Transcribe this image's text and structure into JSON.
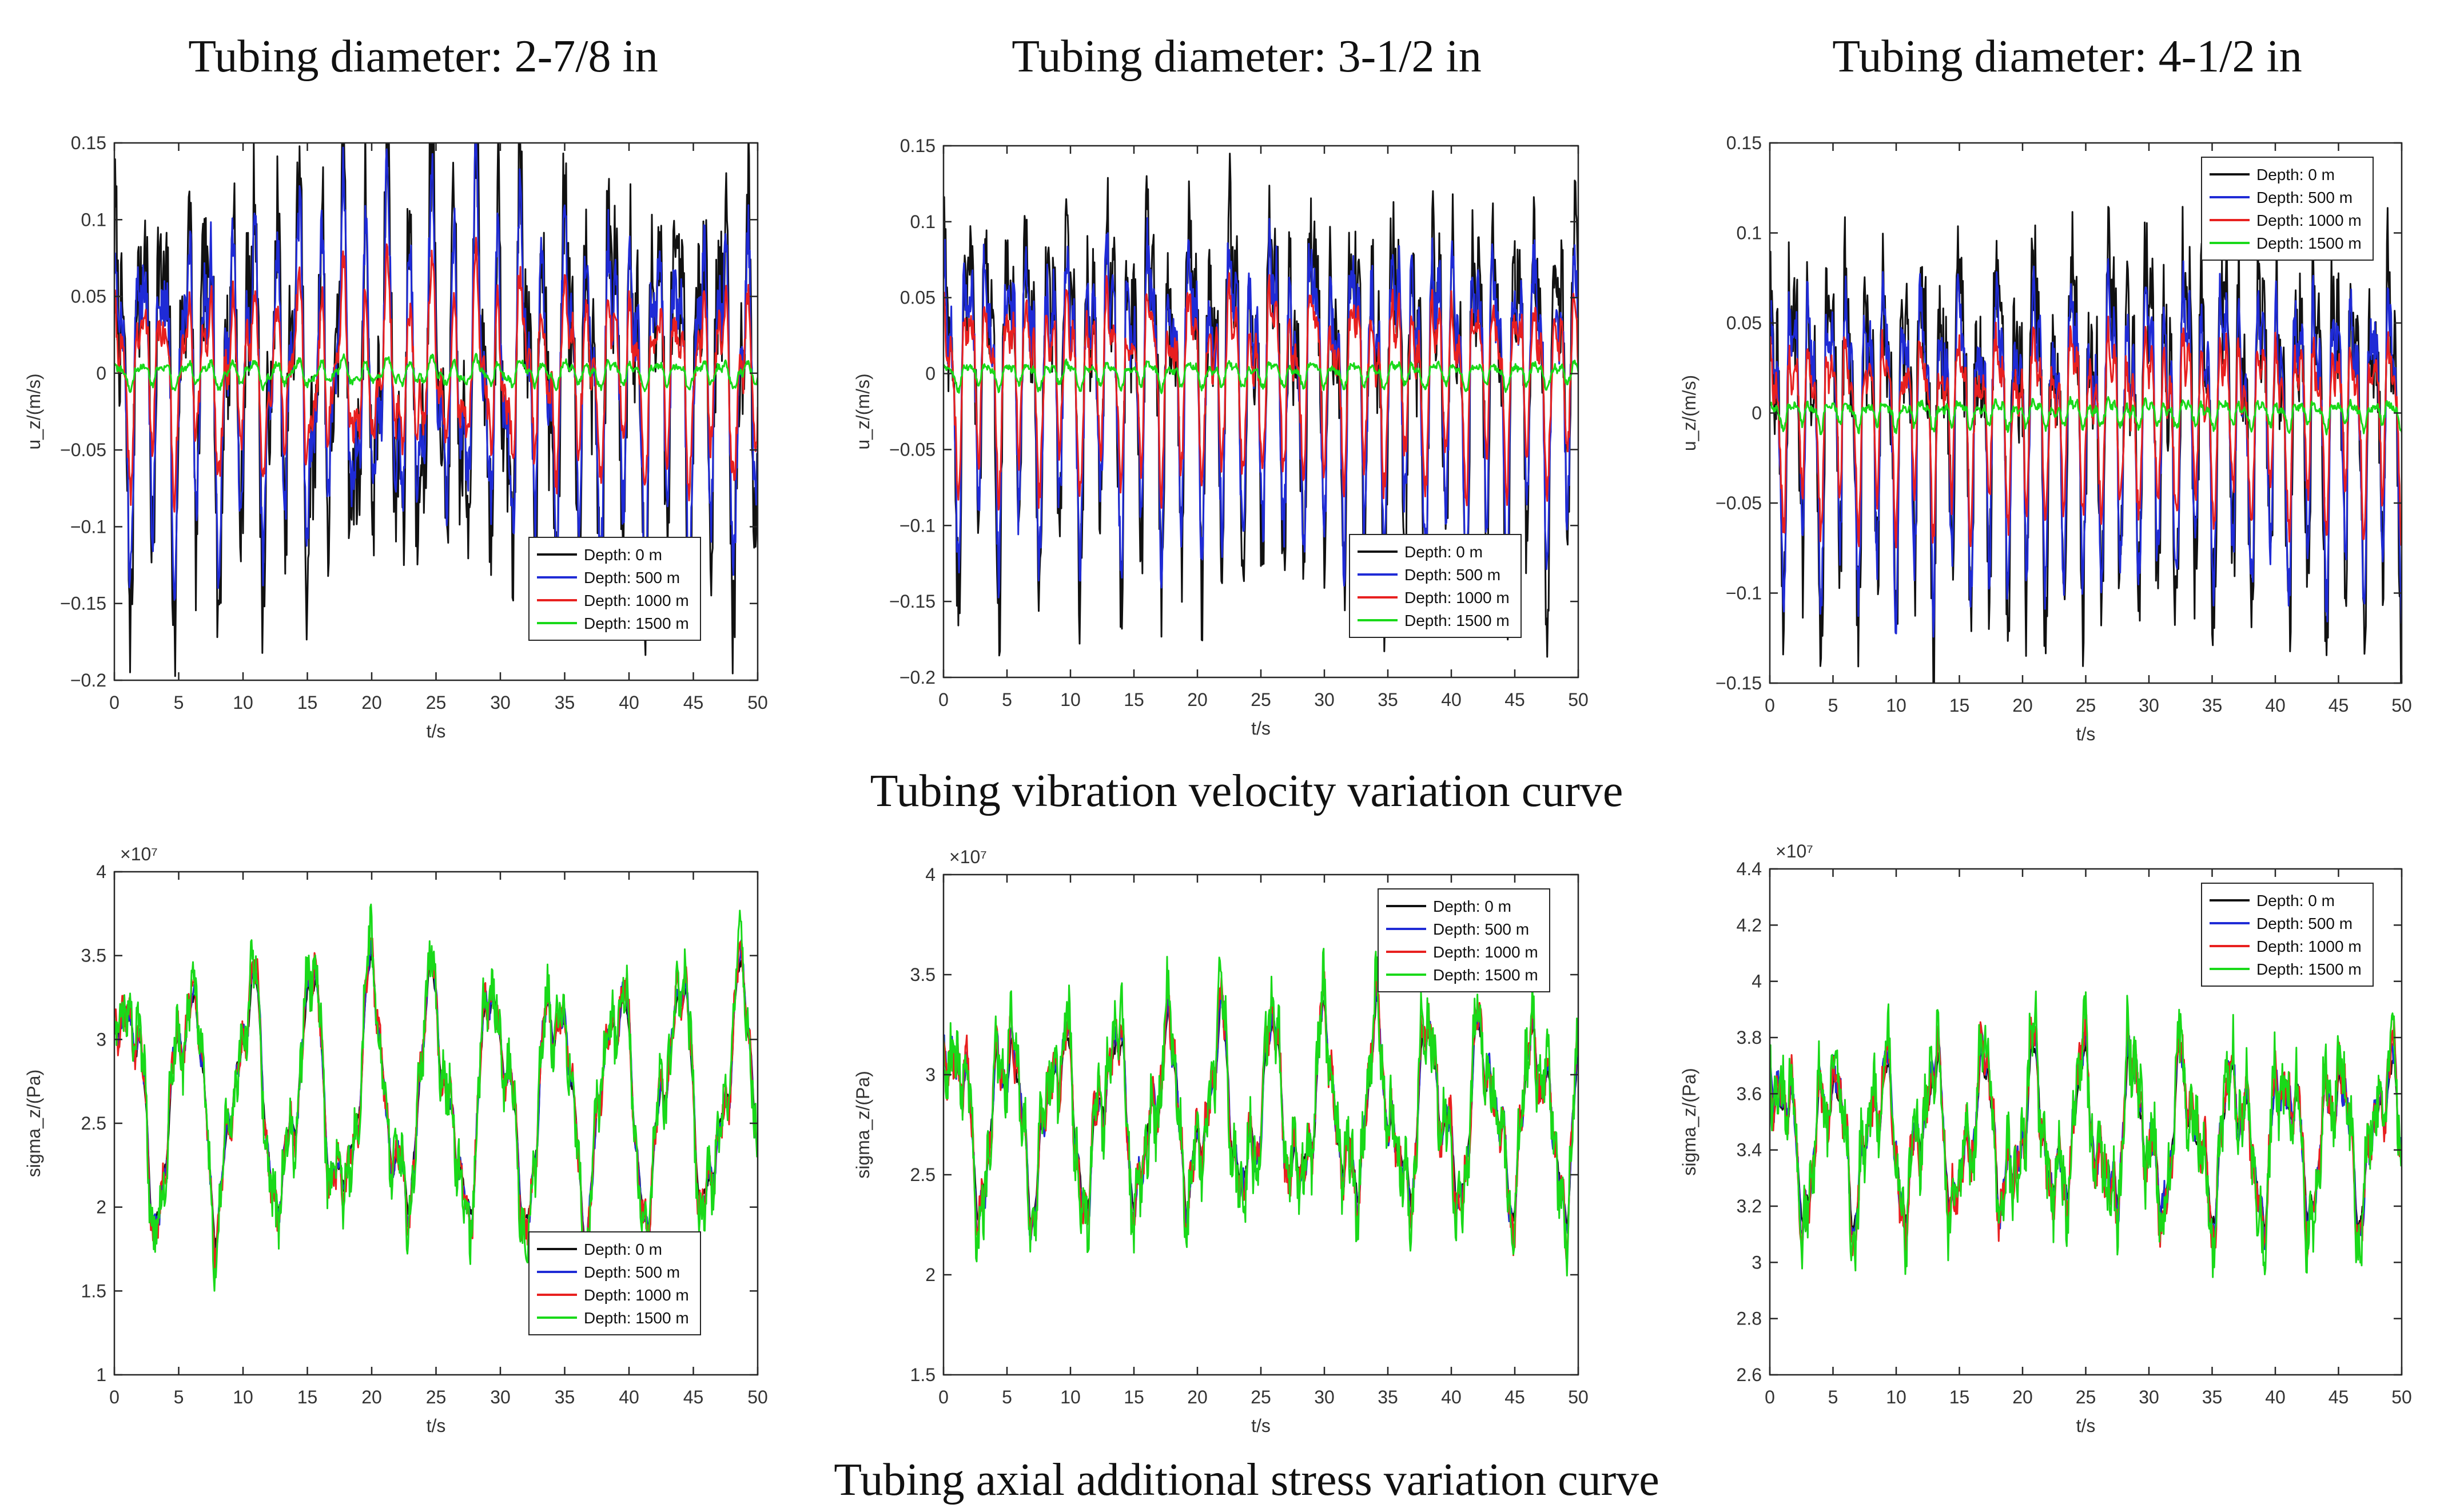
{
  "panel_titles": [
    "Tubing diameter: 2-7/8 in",
    "Tubing diameter: 3-1/2 in",
    "Tubing diameter: 4-1/2 in"
  ],
  "row_captions": [
    "Tubing vibration velocity variation curve",
    "Tubing axial additional stress variation curve"
  ],
  "series_colors": [
    "#111111",
    "#1f2bd6",
    "#e8201f",
    "#19d919"
  ],
  "chart_data": [
    {
      "type": "line",
      "id": "vel-278",
      "title": "Tubing diameter: 2-7/8 in",
      "xlabel": "t/s",
      "ylabel": "u_z/(m/s)",
      "xlim": [
        0,
        50
      ],
      "ylim": [
        -0.2,
        0.15
      ],
      "xticks": [
        0,
        5,
        10,
        15,
        20,
        25,
        30,
        35,
        40,
        45,
        50
      ],
      "xtick_labels": [
        "0",
        "5",
        "10",
        "15",
        "20",
        "25",
        "30",
        "35",
        "40",
        "45",
        "50"
      ],
      "yticks": [
        -0.2,
        -0.15,
        -0.1,
        -0.05,
        0,
        0.05,
        0.1,
        0.15
      ],
      "ytick_labels": [
        "−0.2",
        "−0.15",
        "−0.1",
        "−0.05",
        "0",
        "0.05",
        "0.1",
        "0.15"
      ],
      "exponent_label": "",
      "legend": "bottom-right",
      "series": [
        {
          "name": "Depth: 0 m",
          "amplitudes": [
            0.09,
            0.05,
            0.028,
            0.012
          ],
          "spike": 0.045
        },
        {
          "name": "Depth: 500 m",
          "amplitudes": [
            0.075,
            0.04,
            0.022,
            0.008
          ],
          "spike": 0.02
        },
        {
          "name": "Depth: 1000 m",
          "amplitudes": [
            0.04,
            0.022,
            0.015,
            0.007
          ],
          "spike": 0.01
        },
        {
          "name": "Depth: 1500 m",
          "amplitudes": [
            0.006,
            0.003,
            0.002,
            0.001
          ],
          "spike": 0.002
        }
      ],
      "signal": {
        "kind": "velocity",
        "base": 0,
        "freqs": [
          1.15,
          2.35,
          0.55,
          3.7
        ]
      }
    },
    {
      "type": "line",
      "id": "vel-312",
      "title": "Tubing diameter: 3-1/2 in",
      "xlabel": "t/s",
      "ylabel": "u_z/(m/s)",
      "xlim": [
        0,
        50
      ],
      "ylim": [
        -0.2,
        0.15
      ],
      "xticks": [
        0,
        5,
        10,
        15,
        20,
        25,
        30,
        35,
        40,
        45,
        50
      ],
      "xtick_labels": [
        "0",
        "5",
        "10",
        "15",
        "20",
        "25",
        "30",
        "35",
        "40",
        "45",
        "50"
      ],
      "yticks": [
        -0.2,
        -0.15,
        -0.1,
        -0.05,
        0,
        0.05,
        0.1,
        0.15
      ],
      "ytick_labels": [
        "−0.2",
        "−0.15",
        "−0.1",
        "−0.05",
        "0",
        "0.05",
        "0.1",
        "0.15"
      ],
      "exponent_label": "",
      "legend": "bottom-right",
      "series": [
        {
          "name": "Depth: 0 m",
          "amplitudes": [
            0.085,
            0.045,
            0.025,
            0.012
          ],
          "spike": 0.035
        },
        {
          "name": "Depth: 500 m",
          "amplitudes": [
            0.07,
            0.038,
            0.02,
            0.008
          ],
          "spike": 0.02
        },
        {
          "name": "Depth: 1000 m",
          "amplitudes": [
            0.042,
            0.024,
            0.014,
            0.006
          ],
          "spike": 0.01
        },
        {
          "name": "Depth: 1500 m",
          "amplitudes": [
            0.006,
            0.003,
            0.002,
            0.001
          ],
          "spike": 0.002
        }
      ],
      "signal": {
        "kind": "velocity",
        "base": 0,
        "freqs": [
          1.25,
          2.5,
          0.6,
          3.9
        ]
      }
    },
    {
      "type": "line",
      "id": "vel-412",
      "title": "Tubing diameter: 4-1/2 in",
      "xlabel": "t/s",
      "ylabel": "u_z/(m/s)",
      "xlim": [
        0,
        50
      ],
      "ylim": [
        -0.15,
        0.15
      ],
      "xticks": [
        0,
        5,
        10,
        15,
        20,
        25,
        30,
        35,
        40,
        45,
        50
      ],
      "xtick_labels": [
        "0",
        "5",
        "10",
        "15",
        "20",
        "25",
        "30",
        "35",
        "40",
        "45",
        "50"
      ],
      "yticks": [
        -0.15,
        -0.1,
        -0.05,
        0,
        0.05,
        0.1,
        0.15
      ],
      "ytick_labels": [
        "−0.15",
        "−0.1",
        "−0.05",
        "0",
        "0.05",
        "0.1",
        "0.15"
      ],
      "exponent_label": "",
      "legend": "top-right",
      "series": [
        {
          "name": "Depth: 0 m",
          "amplitudes": [
            0.07,
            0.035,
            0.02,
            0.01
          ],
          "spike": 0.035
        },
        {
          "name": "Depth: 500 m",
          "amplitudes": [
            0.06,
            0.03,
            0.016,
            0.007
          ],
          "spike": 0.015
        },
        {
          "name": "Depth: 1000 m",
          "amplitudes": [
            0.035,
            0.02,
            0.012,
            0.005
          ],
          "spike": 0.008
        },
        {
          "name": "Depth: 1500 m",
          "amplitudes": [
            0.005,
            0.003,
            0.002,
            0.001
          ],
          "spike": 0.002
        }
      ],
      "signal": {
        "kind": "velocity",
        "base": 0,
        "freqs": [
          1.35,
          2.7,
          0.65,
          4.1
        ]
      }
    },
    {
      "type": "line",
      "id": "stress-278",
      "title": "Tubing diameter: 2-7/8 in",
      "xlabel": "t/s",
      "ylabel": "sigma_z/(Pa)",
      "xlim": [
        0,
        50
      ],
      "ylim": [
        10000000,
        40000000
      ],
      "xticks": [
        0,
        5,
        10,
        15,
        20,
        25,
        30,
        35,
        40,
        45,
        50
      ],
      "xtick_labels": [
        "0",
        "5",
        "10",
        "15",
        "20",
        "25",
        "30",
        "35",
        "40",
        "45",
        "50"
      ],
      "yticks": [
        10000000,
        15000000,
        20000000,
        25000000,
        30000000,
        35000000,
        40000000
      ],
      "ytick_labels": [
        "1",
        "1.5",
        "2",
        "2.5",
        "3",
        "3.5",
        "4"
      ],
      "exponent_label": "×10⁷",
      "legend": "bottom-right",
      "series": [
        {
          "name": "Depth: 0 m",
          "amplitudes": [
            6000000,
            1800000,
            900000,
            400000
          ],
          "spike": 300000
        },
        {
          "name": "Depth: 500 m",
          "amplitudes": [
            6200000,
            2000000,
            1000000,
            600000
          ],
          "spike": 600000
        },
        {
          "name": "Depth: 1000 m",
          "amplitudes": [
            6300000,
            2100000,
            1100000,
            800000
          ],
          "spike": 900000
        },
        {
          "name": "Depth: 1500 m",
          "amplitudes": [
            6500000,
            2200000,
            1200000,
            1000000
          ],
          "spike": 1500000
        }
      ],
      "signal": {
        "kind": "stress",
        "base": 26500000,
        "freqs": [
          0.42,
          0.9,
          1.6,
          3.2
        ]
      }
    },
    {
      "type": "line",
      "id": "stress-312",
      "title": "Tubing diameter: 3-1/2 in",
      "xlabel": "t/s",
      "ylabel": "sigma_z/(Pa)",
      "xlim": [
        0,
        50
      ],
      "ylim": [
        15000000,
        40000000
      ],
      "xticks": [
        0,
        5,
        10,
        15,
        20,
        25,
        30,
        35,
        40,
        45,
        50
      ],
      "xtick_labels": [
        "0",
        "5",
        "10",
        "15",
        "20",
        "25",
        "30",
        "35",
        "40",
        "45",
        "50"
      ],
      "yticks": [
        15000000,
        20000000,
        25000000,
        30000000,
        35000000,
        40000000
      ],
      "ytick_labels": [
        "1.5",
        "2",
        "2.5",
        "3",
        "3.5",
        "4"
      ],
      "exponent_label": "×10⁷",
      "legend": "top-right",
      "series": [
        {
          "name": "Depth: 0 m",
          "amplitudes": [
            3500000,
            1500000,
            800000,
            400000
          ],
          "spike": 300000
        },
        {
          "name": "Depth: 500 m",
          "amplitudes": [
            3700000,
            1600000,
            900000,
            600000
          ],
          "spike": 600000
        },
        {
          "name": "Depth: 1000 m",
          "amplitudes": [
            3800000,
            1700000,
            1000000,
            800000
          ],
          "spike": 900000
        },
        {
          "name": "Depth: 1500 m",
          "amplitudes": [
            4000000,
            1800000,
            1100000,
            1000000
          ],
          "spike": 1400000
        }
      ],
      "signal": {
        "kind": "stress",
        "base": 28000000,
        "freqs": [
          0.48,
          1.0,
          1.8,
          3.4
        ]
      }
    },
    {
      "type": "line",
      "id": "stress-412",
      "title": "Tubing diameter: 4-1/2 in",
      "xlabel": "t/s",
      "ylabel": "sigma_z/(Pa)",
      "xlim": [
        0,
        50
      ],
      "ylim": [
        26000000,
        44000000
      ],
      "xticks": [
        0,
        5,
        10,
        15,
        20,
        25,
        30,
        35,
        40,
        45,
        50
      ],
      "xtick_labels": [
        "0",
        "5",
        "10",
        "15",
        "20",
        "25",
        "30",
        "35",
        "40",
        "45",
        "50"
      ],
      "yticks": [
        26000000,
        28000000,
        30000000,
        32000000,
        34000000,
        36000000,
        38000000,
        40000000,
        42000000,
        44000000
      ],
      "ytick_labels": [
        "2.6",
        "2.8",
        "3",
        "3.2",
        "3.4",
        "3.6",
        "3.8",
        "4",
        "4.2",
        "4.4"
      ],
      "exponent_label": "×10⁷",
      "legend": "top-right",
      "series": [
        {
          "name": "Depth: 0 m",
          "amplitudes": [
            2000000,
            1000000,
            500000,
            300000
          ],
          "spike": 200000
        },
        {
          "name": "Depth: 500 m",
          "amplitudes": [
            2200000,
            1100000,
            600000,
            400000
          ],
          "spike": 500000
        },
        {
          "name": "Depth: 1000 m",
          "amplitudes": [
            2300000,
            1200000,
            700000,
            500000
          ],
          "spike": 700000
        },
        {
          "name": "Depth: 1500 m",
          "amplitudes": [
            2400000,
            1300000,
            800000,
            600000
          ],
          "spike": 1100000
        }
      ],
      "signal": {
        "kind": "stress",
        "base": 34500000,
        "freqs": [
          0.5,
          1.05,
          1.9,
          3.6
        ]
      }
    }
  ]
}
